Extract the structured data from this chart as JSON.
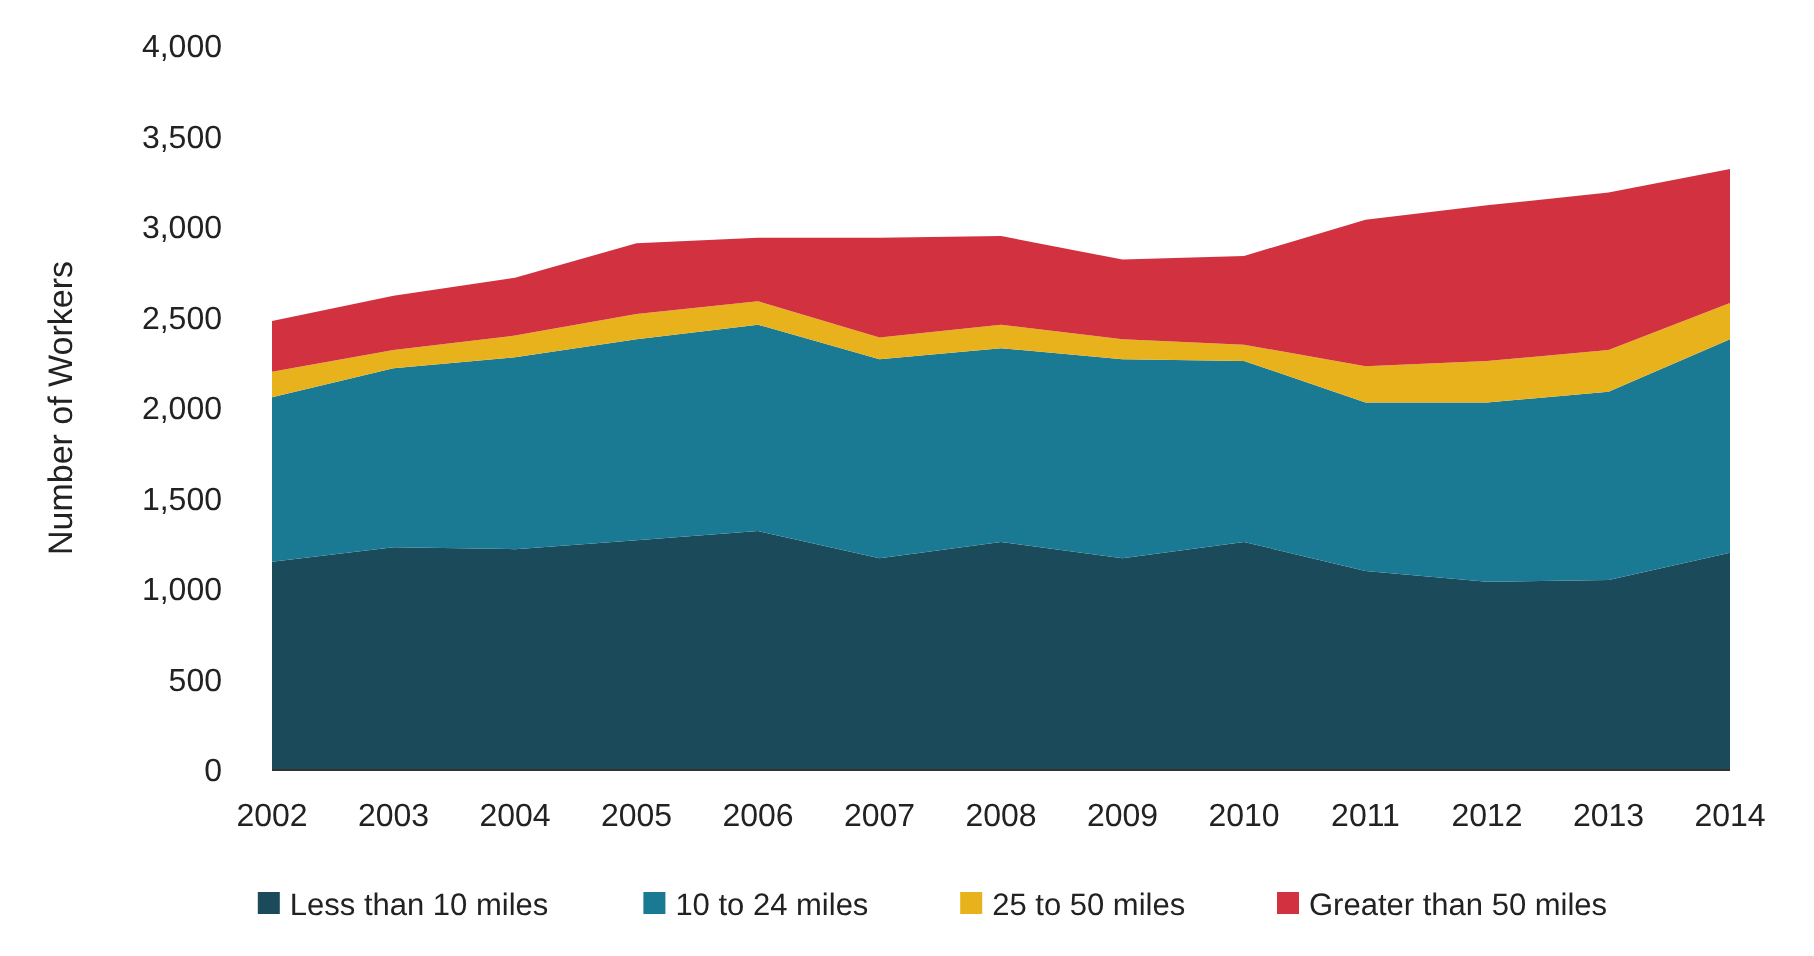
{
  "chart_data": {
    "type": "area",
    "stacked": true,
    "ylabel": "Number of Workers",
    "categories": [
      "2002",
      "2003",
      "2004",
      "2005",
      "2006",
      "2007",
      "2008",
      "2009",
      "2010",
      "2011",
      "2012",
      "2013",
      "2014"
    ],
    "ylim": [
      0,
      4000
    ],
    "yticks": [
      {
        "value": 0,
        "label": "0"
      },
      {
        "value": 500,
        "label": "500"
      },
      {
        "value": 1000,
        "label": "1,000"
      },
      {
        "value": 1500,
        "label": "1,500"
      },
      {
        "value": 2000,
        "label": "2,000"
      },
      {
        "value": 2500,
        "label": "2,500"
      },
      {
        "value": 3000,
        "label": "3,000"
      },
      {
        "value": 3500,
        "label": "3,500"
      },
      {
        "value": 4000,
        "label": "4,000"
      }
    ],
    "grid": false,
    "legend": "bottom",
    "series": [
      {
        "name": "Less than 10 miles",
        "color": "#1b4a5a",
        "values": [
          1150,
          1230,
          1220,
          1270,
          1320,
          1170,
          1260,
          1170,
          1260,
          1100,
          1040,
          1050,
          1200
        ]
      },
      {
        "name": "10 to 24 miles",
        "color": "#1a7a94",
        "values": [
          910,
          990,
          1060,
          1110,
          1140,
          1100,
          1070,
          1100,
          1000,
          930,
          990,
          1040,
          1180
        ]
      },
      {
        "name": "25 to 50 miles",
        "color": "#e8b21c",
        "values": [
          140,
          100,
          120,
          140,
          130,
          120,
          130,
          110,
          90,
          200,
          230,
          230,
          200
        ]
      },
      {
        "name": "Greater than 50 miles",
        "color": "#d2323f",
        "values": [
          280,
          300,
          320,
          390,
          350,
          550,
          490,
          440,
          490,
          810,
          860,
          870,
          740
        ]
      }
    ]
  }
}
